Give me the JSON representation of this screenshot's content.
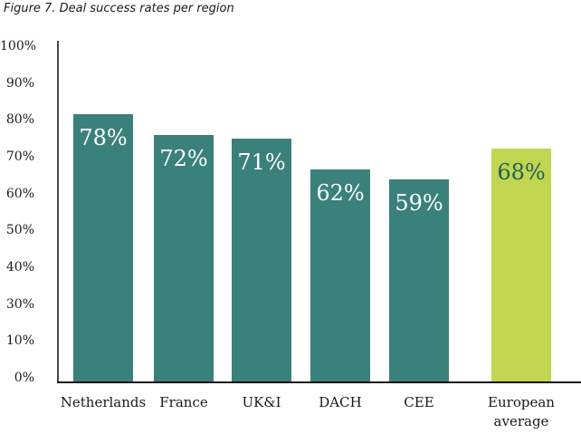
{
  "figure": {
    "title": "Figure 7. Deal success rates per region"
  },
  "chart_data": {
    "type": "bar",
    "title": "Figure 7. Deal success rates per region",
    "categories": [
      "Netherlands",
      "France",
      "UK&I",
      "DACH",
      "CEE",
      "European average"
    ],
    "values": [
      78,
      72,
      71,
      62,
      59,
      68
    ],
    "value_labels": [
      "78%",
      "72%",
      "71%",
      "62%",
      "59%",
      "68%"
    ],
    "xlabel": "",
    "ylabel": "",
    "ylim": [
      0,
      100
    ],
    "y_tick_labels": [
      "100%",
      "90%",
      "80%",
      "70%",
      "60%",
      "50%",
      "40%",
      "30%",
      "10%",
      "0%"
    ],
    "grid": "off",
    "legend": "none",
    "highlighted_category": "European average",
    "bar_colors": [
      "#3A817B",
      "#3A817B",
      "#3A817B",
      "#3A817B",
      "#3A817B",
      "#C2D551"
    ],
    "value_label_colors": [
      "#FFFFFF",
      "#FFFFFF",
      "#FFFFFF",
      "#FFFFFF",
      "#FFFFFF",
      "#24605A"
    ],
    "axis_line_color": "#4A4A4A",
    "baseline_color": "#111111",
    "text_color": "#1A1A1A"
  }
}
